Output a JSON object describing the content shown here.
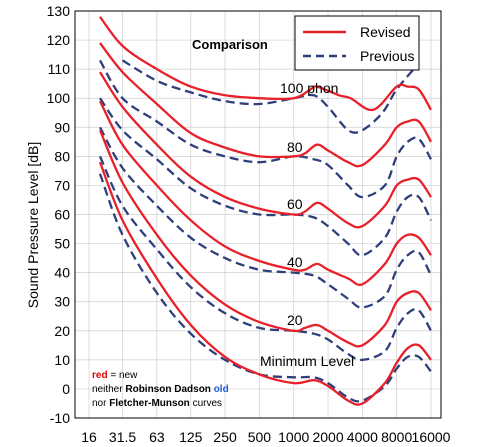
{
  "chart_data": {
    "type": "line",
    "title": "Comparison",
    "ylabel": "Sound Pressure Level [dB]",
    "xlabel": "",
    "x_scale": "log",
    "xticks": [
      16,
      31.5,
      63,
      125,
      250,
      500,
      1000,
      2000,
      4000,
      8000,
      16000
    ],
    "xtick_labels": [
      "16",
      "31.5",
      "63",
      "125",
      "250",
      "500",
      "1000",
      "2000",
      "4000",
      "8000",
      "16000"
    ],
    "ylim": [
      -10,
      130
    ],
    "yticks": [
      -10,
      0,
      10,
      20,
      30,
      40,
      50,
      60,
      70,
      80,
      90,
      100,
      110,
      120,
      130
    ],
    "grid": true,
    "legend_position": "top-right",
    "legend": [
      {
        "name": "Revised",
        "color": "#e8202a",
        "style": "solid"
      },
      {
        "name": "Previous",
        "color": "#2e3f7c",
        "style": "dashed"
      }
    ],
    "annotations": [
      "100 phon",
      "80",
      "60",
      "40",
      "20",
      "Minimum Level"
    ],
    "note": {
      "line1_red": "red",
      "line1_rest": " = new",
      "line2_a": "neither ",
      "line2_bold": "Robinson Dadson",
      "line2_blue": " old",
      "line3_a": "nor ",
      "line3_bold": "Fletcher-Munson",
      "line3_b": " curves"
    },
    "series": [
      {
        "name": "Revised",
        "label": "100 phon",
        "style": "solid",
        "color": "#e8202a",
        "x": [
          20,
          31.5,
          63,
          125,
          250,
          500,
          1000,
          1400,
          1600,
          2500,
          3150,
          5000,
          8000,
          10000,
          12500,
          16000
        ],
        "y": [
          128,
          118,
          110,
          104,
          101,
          100,
          100,
          103,
          104,
          101,
          100,
          96,
          104,
          104,
          103,
          96
        ]
      },
      {
        "name": "Previous",
        "label": "100 phon",
        "style": "dashed",
        "color": "#2e3f7c",
        "x": [
          31.5,
          63,
          125,
          250,
          500,
          1000,
          1500,
          2000,
          3000,
          4000,
          6000,
          8000,
          12500
        ],
        "y": [
          113,
          106,
          102,
          99,
          98,
          100,
          101,
          97,
          89,
          89,
          95,
          103,
          112
        ]
      },
      {
        "name": "Revised",
        "label": "80",
        "style": "solid",
        "color": "#e8202a",
        "x": [
          20,
          31.5,
          63,
          125,
          250,
          500,
          1000,
          1250,
          1600,
          2000,
          3000,
          4000,
          6300,
          8000,
          10000,
          12500,
          16000
        ],
        "y": [
          119,
          109,
          98,
          88,
          83,
          80,
          80,
          81,
          84,
          82,
          78,
          77,
          84,
          90,
          92,
          92,
          85
        ]
      },
      {
        "name": "Previous",
        "label": "80",
        "style": "dashed",
        "color": "#2e3f7c",
        "x": [
          20,
          31.5,
          63,
          125,
          250,
          500,
          1000,
          1500,
          2000,
          3000,
          4000,
          6300,
          8000,
          10000,
          12500,
          16000
        ],
        "y": [
          113,
          100,
          92,
          84,
          80,
          78,
          80,
          79,
          77,
          70,
          66,
          70,
          80,
          85,
          86,
          79
        ]
      },
      {
        "name": "Revised",
        "label": "60",
        "style": "solid",
        "color": "#e8202a",
        "x": [
          20,
          31.5,
          63,
          125,
          250,
          500,
          1000,
          1250,
          1600,
          2000,
          3000,
          4000,
          6300,
          8000,
          10000,
          12500,
          16000
        ],
        "y": [
          109,
          97,
          84,
          73,
          66,
          62,
          60,
          61,
          64,
          62,
          57,
          56,
          63,
          70,
          72,
          72,
          66
        ]
      },
      {
        "name": "Previous",
        "label": "60",
        "style": "dashed",
        "color": "#2e3f7c",
        "x": [
          20,
          31.5,
          63,
          125,
          250,
          500,
          1000,
          1500,
          2000,
          3000,
          4000,
          6300,
          8000,
          10000,
          12500,
          16000
        ],
        "y": [
          100,
          89,
          79,
          69,
          63,
          60,
          60,
          59,
          56,
          50,
          46,
          52,
          61,
          66,
          66,
          58
        ]
      },
      {
        "name": "Revised",
        "label": "40",
        "style": "solid",
        "color": "#e8202a",
        "x": [
          20,
          31.5,
          63,
          125,
          250,
          500,
          1000,
          1250,
          1600,
          2000,
          3000,
          4000,
          6300,
          8000,
          10000,
          12500,
          16000
        ],
        "y": [
          99,
          84,
          70,
          58,
          49,
          44,
          41,
          41,
          43,
          41,
          38,
          36,
          43,
          50,
          53,
          52,
          46
        ]
      },
      {
        "name": "Previous",
        "label": "40",
        "style": "dashed",
        "color": "#2e3f7c",
        "x": [
          20,
          31.5,
          63,
          125,
          250,
          500,
          1000,
          1500,
          2000,
          3000,
          4000,
          6300,
          8000,
          10000,
          12500,
          16000
        ],
        "y": [
          90,
          76,
          63,
          52,
          45,
          41,
          40,
          39,
          36,
          31,
          28,
          32,
          41,
          46,
          47,
          39
        ]
      },
      {
        "name": "Revised",
        "label": "20",
        "style": "solid",
        "color": "#e8202a",
        "x": [
          20,
          31.5,
          63,
          125,
          250,
          500,
          1000,
          1250,
          1600,
          2000,
          3000,
          4000,
          6300,
          8000,
          10000,
          12500,
          16000
        ],
        "y": [
          89,
          71,
          53,
          39,
          29,
          23,
          20,
          21,
          22,
          20,
          16,
          15,
          22,
          30,
          33,
          33,
          27
        ]
      },
      {
        "name": "Previous",
        "label": "20",
        "style": "dashed",
        "color": "#2e3f7c",
        "x": [
          20,
          31.5,
          63,
          125,
          250,
          500,
          1000,
          1500,
          2000,
          3000,
          4000,
          6300,
          8000,
          10000,
          12500,
          16000
        ],
        "y": [
          80,
          63,
          48,
          35,
          26,
          21,
          20,
          19,
          17,
          12,
          10,
          13,
          21,
          26,
          27,
          20
        ]
      },
      {
        "name": "Revised",
        "label": "Minimum Level",
        "style": "solid",
        "color": "#e8202a",
        "x": [
          20,
          31.5,
          63,
          125,
          250,
          500,
          1000,
          1500,
          2000,
          3000,
          4000,
          6300,
          8000,
          10000,
          12500,
          16000
        ],
        "y": [
          78,
          58,
          38,
          22,
          11,
          5,
          2,
          3,
          1,
          -4,
          -5,
          2,
          9,
          14,
          15,
          10
        ]
      },
      {
        "name": "Previous",
        "label": "Minimum Level",
        "style": "dashed",
        "color": "#2e3f7c",
        "x": [
          20,
          31.5,
          63,
          125,
          250,
          500,
          1000,
          1500,
          2000,
          3000,
          4000,
          6300,
          8000,
          10000,
          12500,
          16000
        ],
        "y": [
          74,
          53,
          33,
          19,
          10,
          5,
          4,
          4,
          2,
          -3,
          -4,
          1,
          7,
          11,
          11,
          6
        ]
      }
    ]
  }
}
